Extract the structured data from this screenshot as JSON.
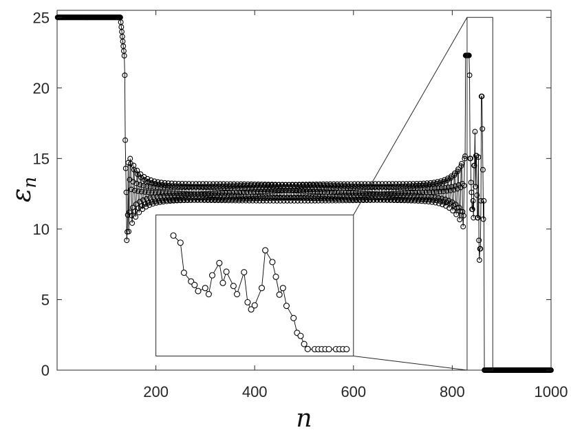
{
  "chart_data": {
    "type": "scatter",
    "xlabel": "n",
    "ylabel_main": "ε",
    "ylabel_sub": "n",
    "xlim": [
      0,
      1000
    ],
    "ylim": [
      0,
      25.5
    ],
    "xticks": [
      200,
      400,
      600,
      800,
      1000
    ],
    "xtick_labels": [
      "200",
      "400",
      "600",
      "800",
      "1000"
    ],
    "yticks": [
      0,
      5,
      10,
      15,
      20,
      25
    ],
    "ytick_labels": [
      "0",
      "5",
      "10",
      "15",
      "20",
      "25"
    ],
    "grid": false,
    "marker": "open-circle",
    "line": true,
    "colors": {
      "series": "#000000",
      "axes": "#262626",
      "background": "#ffffff"
    },
    "inset": {
      "source_x_range": [
        830,
        882
      ],
      "source_y_range": [
        0,
        25
      ],
      "frame_in_main_data_units": {
        "x": [
          200,
          600
        ],
        "y": [
          1,
          11
        ]
      },
      "points": [
        [
          833,
          22.3
        ],
        [
          835,
          20.9
        ],
        [
          836,
          15.0
        ],
        [
          838,
          13.3
        ],
        [
          839,
          12.6
        ],
        [
          840,
          11.4
        ],
        [
          842,
          12.0
        ],
        [
          843,
          10.8
        ],
        [
          844,
          14.5
        ],
        [
          846,
          16.9
        ],
        [
          847,
          13.0
        ],
        [
          848,
          15.2
        ],
        [
          850,
          12.4
        ],
        [
          851,
          10.8
        ],
        [
          853,
          15.1
        ],
        [
          854,
          9.2
        ],
        [
          855,
          7.8
        ],
        [
          856,
          8.6
        ],
        [
          858,
          12.0
        ],
        [
          859,
          19.4
        ],
        [
          861,
          17.1
        ],
        [
          862,
          14.2
        ],
        [
          863,
          10.7
        ],
        [
          864,
          12.0
        ],
        [
          865,
          8.5
        ],
        [
          867,
          6.1
        ],
        [
          868,
          3.2
        ],
        [
          869,
          2.6
        ],
        [
          870,
          1.0
        ],
        [
          871,
          0.03
        ],
        [
          873,
          0.0
        ],
        [
          874,
          0.0
        ],
        [
          875,
          0.0
        ],
        [
          876,
          0.0
        ],
        [
          877,
          0.0
        ],
        [
          879,
          0.0
        ],
        [
          880,
          0.0
        ],
        [
          881,
          0.0
        ],
        [
          882,
          0.0
        ]
      ]
    }
  }
}
